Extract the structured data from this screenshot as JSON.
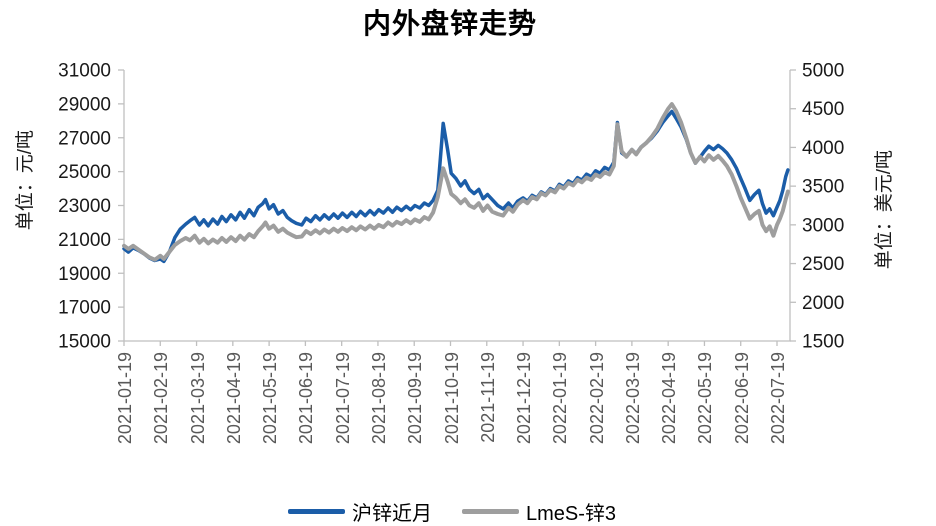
{
  "chart_data": {
    "type": "line",
    "title": "内外盘锌走势",
    "grid": false,
    "legend_position": "bottom",
    "left_axis": {
      "label": "单位：元/吨",
      "min": 15000,
      "max": 31000,
      "ticks": [
        31000,
        29000,
        27000,
        25000,
        23000,
        21000,
        19000,
        17000,
        15000
      ]
    },
    "right_axis": {
      "label": "单位：美元/吨",
      "min": 1500,
      "max": 5000,
      "ticks": [
        5000,
        4500,
        4000,
        3500,
        3000,
        2500,
        2000,
        1500
      ]
    },
    "x_axis": {
      "tick_labels": [
        "2021-01-19",
        "2021-02-19",
        "2021-03-19",
        "2021-04-19",
        "2021-05-19",
        "2021-06-19",
        "2021-07-19",
        "2021-08-19",
        "2021-09-19",
        "2021-10-19",
        "2021-11-19",
        "2021-12-19",
        "2022-01-19",
        "2022-02-19",
        "2022-03-19",
        "2022-04-19",
        "2022-05-19",
        "2022-06-19",
        "2022-07-19"
      ],
      "months_shown": 19,
      "data_end_month": 18.3
    },
    "axis_color": "#BFBFBF",
    "x_label_color": "#595959",
    "y_label_color": "#1a1a1a",
    "series": [
      {
        "name": "沪锌近月",
        "axis": "left",
        "color": "#1B5DA8",
        "stroke_width": 3.5,
        "points": [
          [
            0.0,
            20450
          ],
          [
            0.12,
            20250
          ],
          [
            0.25,
            20500
          ],
          [
            0.4,
            20350
          ],
          [
            0.55,
            20150
          ],
          [
            0.7,
            19900
          ],
          [
            0.85,
            19750
          ],
          [
            1.0,
            19850
          ],
          [
            1.1,
            19700
          ],
          [
            1.25,
            20250
          ],
          [
            1.4,
            21100
          ],
          [
            1.55,
            21600
          ],
          [
            1.7,
            21900
          ],
          [
            1.82,
            22100
          ],
          [
            1.95,
            22300
          ],
          [
            2.08,
            21850
          ],
          [
            2.2,
            22150
          ],
          [
            2.32,
            21800
          ],
          [
            2.45,
            22200
          ],
          [
            2.58,
            21900
          ],
          [
            2.7,
            22350
          ],
          [
            2.82,
            22050
          ],
          [
            2.95,
            22450
          ],
          [
            3.08,
            22150
          ],
          [
            3.2,
            22600
          ],
          [
            3.32,
            22250
          ],
          [
            3.45,
            22750
          ],
          [
            3.58,
            22400
          ],
          [
            3.7,
            22900
          ],
          [
            3.82,
            23100
          ],
          [
            3.9,
            23350
          ],
          [
            4.0,
            22800
          ],
          [
            4.12,
            23050
          ],
          [
            4.25,
            22500
          ],
          [
            4.38,
            22700
          ],
          [
            4.5,
            22300
          ],
          [
            4.62,
            22100
          ],
          [
            4.75,
            21950
          ],
          [
            4.9,
            21850
          ],
          [
            5.02,
            22250
          ],
          [
            5.15,
            22050
          ],
          [
            5.28,
            22400
          ],
          [
            5.4,
            22150
          ],
          [
            5.52,
            22450
          ],
          [
            5.65,
            22200
          ],
          [
            5.78,
            22500
          ],
          [
            5.9,
            22250
          ],
          [
            6.02,
            22550
          ],
          [
            6.15,
            22300
          ],
          [
            6.28,
            22600
          ],
          [
            6.4,
            22350
          ],
          [
            6.52,
            22650
          ],
          [
            6.65,
            22400
          ],
          [
            6.78,
            22700
          ],
          [
            6.9,
            22450
          ],
          [
            7.02,
            22750
          ],
          [
            7.15,
            22550
          ],
          [
            7.28,
            22850
          ],
          [
            7.4,
            22600
          ],
          [
            7.52,
            22900
          ],
          [
            7.65,
            22700
          ],
          [
            7.78,
            22950
          ],
          [
            7.9,
            22750
          ],
          [
            8.02,
            23000
          ],
          [
            8.15,
            22850
          ],
          [
            8.28,
            23150
          ],
          [
            8.4,
            23000
          ],
          [
            8.52,
            23300
          ],
          [
            8.65,
            23900
          ],
          [
            8.8,
            27850
          ],
          [
            8.92,
            26300
          ],
          [
            9.02,
            24900
          ],
          [
            9.15,
            24600
          ],
          [
            9.28,
            24150
          ],
          [
            9.4,
            24450
          ],
          [
            9.52,
            23950
          ],
          [
            9.65,
            23700
          ],
          [
            9.78,
            23950
          ],
          [
            9.9,
            23400
          ],
          [
            10.02,
            23650
          ],
          [
            10.15,
            23350
          ],
          [
            10.3,
            23000
          ],
          [
            10.45,
            22800
          ],
          [
            10.6,
            23150
          ],
          [
            10.72,
            22850
          ],
          [
            10.85,
            23250
          ],
          [
            11.0,
            23450
          ],
          [
            11.12,
            23250
          ],
          [
            11.25,
            23600
          ],
          [
            11.38,
            23450
          ],
          [
            11.5,
            23800
          ],
          [
            11.62,
            23650
          ],
          [
            11.75,
            24000
          ],
          [
            11.88,
            23850
          ],
          [
            12.0,
            24250
          ],
          [
            12.12,
            24100
          ],
          [
            12.25,
            24450
          ],
          [
            12.38,
            24300
          ],
          [
            12.5,
            24650
          ],
          [
            12.62,
            24500
          ],
          [
            12.75,
            24850
          ],
          [
            12.88,
            24700
          ],
          [
            13.0,
            25050
          ],
          [
            13.12,
            24900
          ],
          [
            13.25,
            25250
          ],
          [
            13.38,
            25100
          ],
          [
            13.5,
            25550
          ],
          [
            13.6,
            27900
          ],
          [
            13.72,
            26100
          ],
          [
            13.85,
            25900
          ],
          [
            14.0,
            26300
          ],
          [
            14.12,
            26050
          ],
          [
            14.25,
            26450
          ],
          [
            14.4,
            26700
          ],
          [
            14.55,
            27000
          ],
          [
            14.7,
            27400
          ],
          [
            14.85,
            27900
          ],
          [
            15.0,
            28300
          ],
          [
            15.1,
            28550
          ],
          [
            15.22,
            28150
          ],
          [
            15.35,
            27650
          ],
          [
            15.5,
            26900
          ],
          [
            15.62,
            26100
          ],
          [
            15.75,
            25500
          ],
          [
            15.88,
            25850
          ],
          [
            16.0,
            26200
          ],
          [
            16.12,
            26500
          ],
          [
            16.25,
            26300
          ],
          [
            16.38,
            26550
          ],
          [
            16.5,
            26350
          ],
          [
            16.62,
            26100
          ],
          [
            16.75,
            25700
          ],
          [
            16.88,
            25200
          ],
          [
            17.0,
            24600
          ],
          [
            17.12,
            24000
          ],
          [
            17.25,
            23300
          ],
          [
            17.38,
            23650
          ],
          [
            17.5,
            23900
          ],
          [
            17.6,
            23100
          ],
          [
            17.7,
            22550
          ],
          [
            17.8,
            22800
          ],
          [
            17.9,
            22400
          ],
          [
            18.0,
            22900
          ],
          [
            18.08,
            23300
          ],
          [
            18.16,
            23900
          ],
          [
            18.24,
            24700
          ],
          [
            18.3,
            25100
          ]
        ]
      },
      {
        "name": "LmeS-锌3",
        "axis": "right",
        "color": "#9E9E9E",
        "stroke_width": 4,
        "points": [
          [
            0.0,
            2730
          ],
          [
            0.12,
            2690
          ],
          [
            0.25,
            2730
          ],
          [
            0.4,
            2680
          ],
          [
            0.55,
            2630
          ],
          [
            0.7,
            2580
          ],
          [
            0.85,
            2550
          ],
          [
            1.0,
            2600
          ],
          [
            1.1,
            2560
          ],
          [
            1.25,
            2650
          ],
          [
            1.4,
            2740
          ],
          [
            1.55,
            2790
          ],
          [
            1.7,
            2830
          ],
          [
            1.82,
            2800
          ],
          [
            1.95,
            2860
          ],
          [
            2.08,
            2770
          ],
          [
            2.2,
            2820
          ],
          [
            2.32,
            2760
          ],
          [
            2.45,
            2810
          ],
          [
            2.58,
            2770
          ],
          [
            2.7,
            2830
          ],
          [
            2.82,
            2780
          ],
          [
            2.95,
            2840
          ],
          [
            3.08,
            2790
          ],
          [
            3.2,
            2860
          ],
          [
            3.32,
            2810
          ],
          [
            3.45,
            2880
          ],
          [
            3.58,
            2840
          ],
          [
            3.7,
            2920
          ],
          [
            3.82,
            2980
          ],
          [
            3.9,
            3030
          ],
          [
            4.0,
            2950
          ],
          [
            4.12,
            2990
          ],
          [
            4.25,
            2910
          ],
          [
            4.38,
            2950
          ],
          [
            4.5,
            2900
          ],
          [
            4.62,
            2870
          ],
          [
            4.75,
            2840
          ],
          [
            4.9,
            2850
          ],
          [
            5.02,
            2920
          ],
          [
            5.15,
            2880
          ],
          [
            5.28,
            2930
          ],
          [
            5.4,
            2890
          ],
          [
            5.52,
            2940
          ],
          [
            5.65,
            2900
          ],
          [
            5.78,
            2950
          ],
          [
            5.9,
            2910
          ],
          [
            6.02,
            2960
          ],
          [
            6.15,
            2920
          ],
          [
            6.28,
            2970
          ],
          [
            6.4,
            2930
          ],
          [
            6.52,
            2980
          ],
          [
            6.65,
            2940
          ],
          [
            6.78,
            2990
          ],
          [
            6.9,
            2950
          ],
          [
            7.02,
            3000
          ],
          [
            7.15,
            2970
          ],
          [
            7.28,
            3030
          ],
          [
            7.4,
            2990
          ],
          [
            7.52,
            3040
          ],
          [
            7.65,
            3010
          ],
          [
            7.78,
            3060
          ],
          [
            7.9,
            3020
          ],
          [
            8.02,
            3070
          ],
          [
            8.15,
            3040
          ],
          [
            8.28,
            3100
          ],
          [
            8.4,
            3070
          ],
          [
            8.52,
            3160
          ],
          [
            8.65,
            3360
          ],
          [
            8.8,
            3730
          ],
          [
            8.92,
            3560
          ],
          [
            9.02,
            3400
          ],
          [
            9.15,
            3350
          ],
          [
            9.28,
            3280
          ],
          [
            9.4,
            3330
          ],
          [
            9.52,
            3250
          ],
          [
            9.65,
            3220
          ],
          [
            9.78,
            3280
          ],
          [
            9.9,
            3180
          ],
          [
            10.02,
            3250
          ],
          [
            10.15,
            3170
          ],
          [
            10.3,
            3140
          ],
          [
            10.45,
            3120
          ],
          [
            10.6,
            3220
          ],
          [
            10.72,
            3170
          ],
          [
            10.85,
            3260
          ],
          [
            11.0,
            3320
          ],
          [
            11.12,
            3280
          ],
          [
            11.25,
            3360
          ],
          [
            11.38,
            3330
          ],
          [
            11.5,
            3410
          ],
          [
            11.62,
            3380
          ],
          [
            11.75,
            3450
          ],
          [
            11.88,
            3420
          ],
          [
            12.0,
            3500
          ],
          [
            12.12,
            3470
          ],
          [
            12.25,
            3540
          ],
          [
            12.38,
            3510
          ],
          [
            12.5,
            3580
          ],
          [
            12.62,
            3550
          ],
          [
            12.75,
            3610
          ],
          [
            12.88,
            3580
          ],
          [
            13.0,
            3650
          ],
          [
            13.12,
            3620
          ],
          [
            13.25,
            3680
          ],
          [
            13.38,
            3650
          ],
          [
            13.5,
            3760
          ],
          [
            13.6,
            4300
          ],
          [
            13.72,
            3950
          ],
          [
            13.85,
            3880
          ],
          [
            14.0,
            3970
          ],
          [
            14.12,
            3910
          ],
          [
            14.25,
            4000
          ],
          [
            14.4,
            4060
          ],
          [
            14.55,
            4140
          ],
          [
            14.7,
            4240
          ],
          [
            14.85,
            4380
          ],
          [
            15.0,
            4500
          ],
          [
            15.1,
            4560
          ],
          [
            15.22,
            4470
          ],
          [
            15.35,
            4330
          ],
          [
            15.5,
            4120
          ],
          [
            15.62,
            3930
          ],
          [
            15.75,
            3800
          ],
          [
            15.88,
            3880
          ],
          [
            16.0,
            3820
          ],
          [
            16.12,
            3900
          ],
          [
            16.25,
            3840
          ],
          [
            16.38,
            3890
          ],
          [
            16.5,
            3830
          ],
          [
            16.62,
            3760
          ],
          [
            16.75,
            3650
          ],
          [
            16.88,
            3500
          ],
          [
            17.0,
            3350
          ],
          [
            17.12,
            3220
          ],
          [
            17.25,
            3080
          ],
          [
            17.38,
            3140
          ],
          [
            17.5,
            3180
          ],
          [
            17.6,
            3000
          ],
          [
            17.7,
            2920
          ],
          [
            17.8,
            2980
          ],
          [
            17.9,
            2860
          ],
          [
            18.0,
            3000
          ],
          [
            18.08,
            3080
          ],
          [
            18.16,
            3180
          ],
          [
            18.24,
            3330
          ],
          [
            18.3,
            3430
          ]
        ]
      }
    ]
  }
}
